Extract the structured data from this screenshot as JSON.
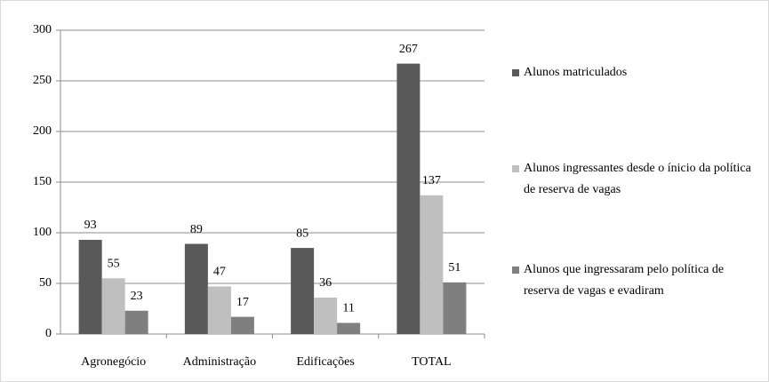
{
  "chart_data": {
    "type": "bar",
    "categories": [
      "Agronegócio",
      "Administração",
      "Edificações",
      "TOTAL"
    ],
    "series": [
      {
        "name": "Alunos matriculados",
        "color": "#595959",
        "values": [
          93,
          89,
          85,
          267
        ]
      },
      {
        "name": "Alunos ingressantes desde o ínicio da política de reserva de vagas",
        "color": "#bfbfbf",
        "values": [
          55,
          47,
          36,
          137
        ]
      },
      {
        "name": "Alunos que ingressaram pelo política de reserva de vagas e evadiram",
        "color": "#7f7f7f",
        "values": [
          23,
          17,
          11,
          51
        ]
      }
    ],
    "ylim": [
      0,
      300
    ],
    "yticks": [
      0,
      50,
      100,
      150,
      200,
      250,
      300
    ],
    "grid": true,
    "legend": "right"
  }
}
